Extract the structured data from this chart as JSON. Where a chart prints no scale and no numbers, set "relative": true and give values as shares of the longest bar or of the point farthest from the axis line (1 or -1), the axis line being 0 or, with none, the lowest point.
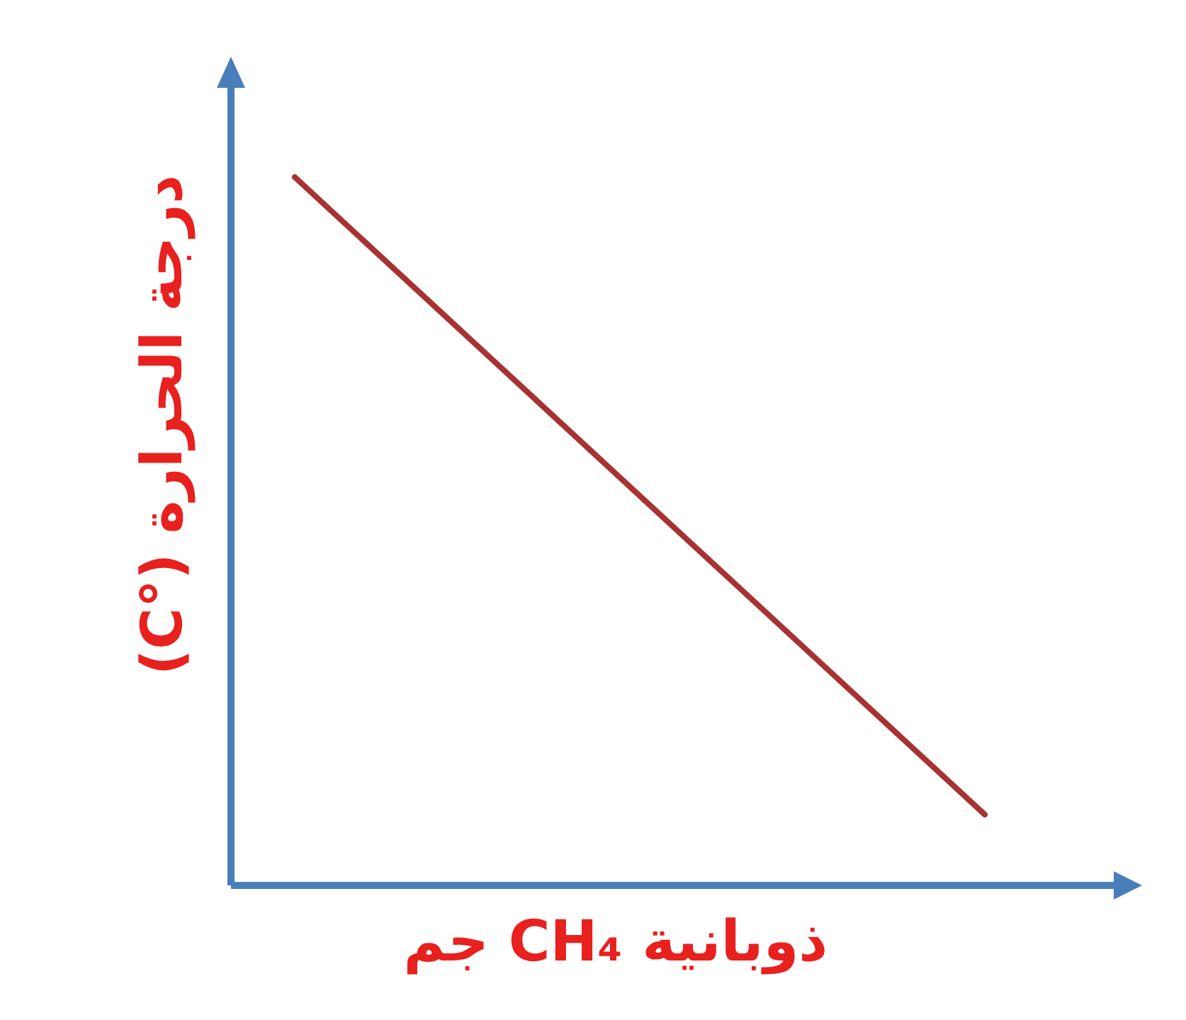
{
  "chart_data": {
    "type": "line",
    "relative": true,
    "xlabel": "ذوبانية CH₄ جم",
    "ylabel": "درجة الحرارة (°C)",
    "categories": [
      null,
      null
    ],
    "series": [
      {
        "color": "#a83232",
        "values": [
          1,
          0.1
        ]
      }
    ]
  }
}
